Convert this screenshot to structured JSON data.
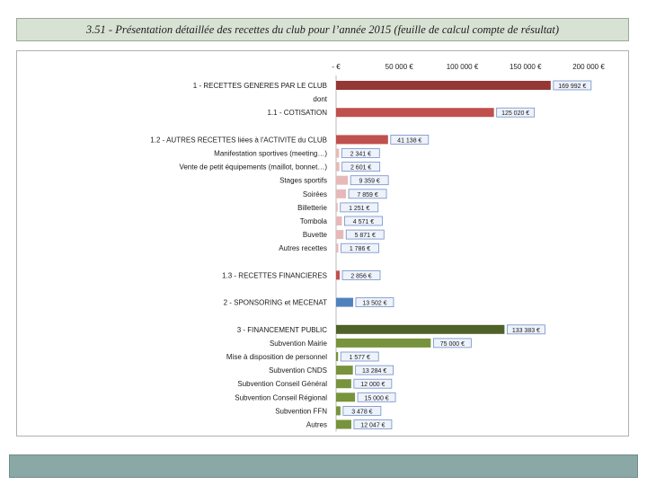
{
  "header": {
    "title": "3.51 - Présentation détaillée des recettes du club pour l’année 2015 (feuille de calcul compte de résultat)"
  },
  "chart_data": {
    "type": "bar",
    "orientation": "horizontal",
    "xlim": [
      0,
      200000
    ],
    "ticks": [
      0,
      50000,
      100000,
      150000,
      200000
    ],
    "tick_labels": [
      "-  €",
      "50 000 €",
      "100 000 €",
      "150 000 €",
      "200 000 €"
    ],
    "rows": [
      {
        "label": "1 - RECETTES GENERES PAR LE CLUB",
        "value": 169992,
        "value_label": "169 992 €",
        "color": "#953735"
      },
      {
        "label": "dont",
        "value": null,
        "value_label": "",
        "color": ""
      },
      {
        "label": "1.1 - COTISATION",
        "value": 125020,
        "value_label": "125 020 €",
        "color": "#c0504d"
      },
      {
        "label": "",
        "value": null,
        "value_label": "",
        "color": ""
      },
      {
        "label": "1.2 - AUTRES RECETTES liées à l'ACTIVITE du CLUB",
        "value": 41138,
        "value_label": "41 138 €",
        "color": "#c0504d"
      },
      {
        "label": "Manifestation sportives (meeting…)",
        "value": 2341,
        "value_label": "2 341 €",
        "color": "#e6b9b8"
      },
      {
        "label": "Vente de petit équipements (maillot, bonnet…)",
        "value": 2601,
        "value_label": "2 601 €",
        "color": "#e6b9b8"
      },
      {
        "label": "Stages sportifs",
        "value": 9359,
        "value_label": "9 359 €",
        "color": "#e6b9b8"
      },
      {
        "label": "Soirées",
        "value": 7859,
        "value_label": "7 859 €",
        "color": "#e6b9b8"
      },
      {
        "label": "Billetterie",
        "value": 1251,
        "value_label": "1 251 €",
        "color": "#e6b9b8"
      },
      {
        "label": "Tombola",
        "value": 4571,
        "value_label": "4 571 €",
        "color": "#e6b9b8"
      },
      {
        "label": "Buvette",
        "value": 5871,
        "value_label": "5 871 €",
        "color": "#e6b9b8"
      },
      {
        "label": "Autres recettes",
        "value": 1786,
        "value_label": "1 786 €",
        "color": "#e6b9b8"
      },
      {
        "label": "",
        "value": null,
        "value_label": "",
        "color": ""
      },
      {
        "label": "1.3 - RECETTES FINANCIERES",
        "value": 2856,
        "value_label": "2 856 €",
        "color": "#c0504d"
      },
      {
        "label": "",
        "value": null,
        "value_label": "",
        "color": ""
      },
      {
        "label": "2 - SPONSORING et MECENAT",
        "value": 13502,
        "value_label": "13 502 €",
        "color": "#4f81bd"
      },
      {
        "label": "",
        "value": null,
        "value_label": "",
        "color": ""
      },
      {
        "label": "3 - FINANCEMENT PUBLIC",
        "value": 133383,
        "value_label": "133 383 €",
        "color": "#4f6228"
      },
      {
        "label": "Subvention Mairie",
        "value": 75000,
        "value_label": "75 000 €",
        "color": "#77933c"
      },
      {
        "label": "Mise à disposition de personnel",
        "value": 1577,
        "value_label": "1 577 €",
        "color": "#77933c"
      },
      {
        "label": "Subvention CNDS",
        "value": 13284,
        "value_label": "13 284 €",
        "color": "#77933c"
      },
      {
        "label": "Subvention Conseil Général",
        "value": 12000,
        "value_label": "12 000 €",
        "color": "#77933c"
      },
      {
        "label": "Subvention Conseil Régional",
        "value": 15000,
        "value_label": "15 000 €",
        "color": "#77933c"
      },
      {
        "label": "Subvention FFN",
        "value": 3478,
        "value_label": "3 478 €",
        "color": "#77933c"
      },
      {
        "label": "Autres",
        "value": 12047,
        "value_label": "12 047 €",
        "color": "#77933c"
      }
    ]
  }
}
